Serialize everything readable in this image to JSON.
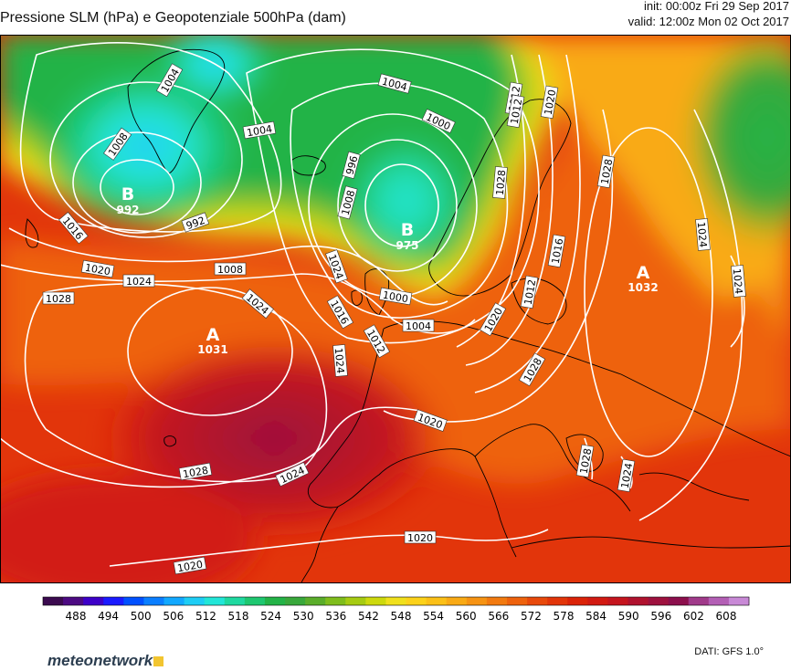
{
  "header": {
    "title": "Pressione SLM (hPa) e Geopotenziale 500hPa (dam)",
    "init": "init: 00:00z Fri 29 Sep 2017",
    "valid": "valid: 12:00z Mon 02 Oct 2017"
  },
  "pressure_centers": [
    {
      "type": "B",
      "value": "992",
      "name": "low-greenland"
    },
    {
      "type": "B",
      "value": "975",
      "name": "low-norway"
    },
    {
      "type": "A",
      "value": "1031",
      "name": "high-azores"
    },
    {
      "type": "A",
      "value": "1032",
      "name": "high-eastern-europe"
    }
  ],
  "isobar_labels": [
    "1004",
    "1008",
    "1004",
    "1004",
    "1000",
    "1012",
    "1020",
    "1012",
    "1016",
    "1020",
    "1024",
    "1008",
    "992",
    "996",
    "1008",
    "1024",
    "1028",
    "1024",
    "1028",
    "1016",
    "1012",
    "1020",
    "1000",
    "1004",
    "1012",
    "1016",
    "1024",
    "1020",
    "1028",
    "1028",
    "1024",
    "1024",
    "1028",
    "1024",
    "1020",
    "1020",
    "1028",
    "1024"
  ],
  "colorbar": {
    "unit": "dam",
    "tick_labels": [
      "488",
      "494",
      "500",
      "506",
      "512",
      "518",
      "524",
      "530",
      "536",
      "542",
      "548",
      "554",
      "560",
      "566",
      "572",
      "578",
      "584",
      "590",
      "596",
      "602",
      "608"
    ],
    "colors": [
      "#3b0a4f",
      "#4c0a82",
      "#3d00c8",
      "#1a1aff",
      "#0050ff",
      "#0a7eff",
      "#12a8ff",
      "#1ecdf5",
      "#22e6d8",
      "#1fd9a0",
      "#1ec770",
      "#23b347",
      "#39a83b",
      "#5aad2a",
      "#7fbd1c",
      "#a6cb12",
      "#cdd90d",
      "#f0e01c",
      "#fcd21a",
      "#fbc017",
      "#f9aa15",
      "#f69313",
      "#f27a10",
      "#ee620d",
      "#e8490b",
      "#e23509",
      "#db2308",
      "#d21a12",
      "#c5151e",
      "#b0122e",
      "#9e113e",
      "#8c0f4c",
      "#a03a8a",
      "#b35fb5",
      "#c889d6"
    ]
  },
  "branding": {
    "text": "meteonetwork"
  },
  "source": "DATI:  GFS  1.0°"
}
